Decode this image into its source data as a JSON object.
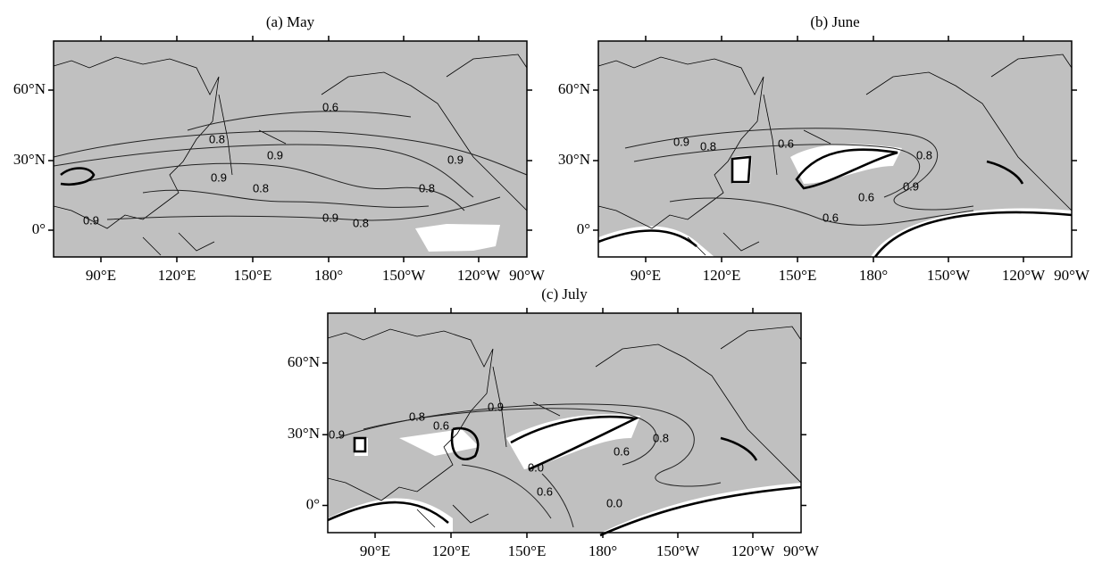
{
  "panels": [
    {
      "title": "(a) May",
      "x_labels": [
        "90°E",
        "120°E",
        "150°E",
        "180°",
        "150°W",
        "120°W",
        "90°W"
      ],
      "y_labels": [
        "60°N",
        "30°N",
        "0°"
      ],
      "contour_labels": [
        "0.6",
        "0.8",
        "0.9",
        "0.9",
        "0.8",
        "0.8",
        "0.9",
        "0.9",
        "0.8",
        "0.9"
      ]
    },
    {
      "title": "(b) June",
      "x_labels": [
        "90°E",
        "120°E",
        "150°E",
        "180°",
        "150°W",
        "120°W",
        "90°W"
      ],
      "y_labels": [
        "60°N",
        "30°N",
        "0°"
      ],
      "contour_labels": [
        "0.9",
        "0.8",
        "0.6",
        "0.8",
        "0.9",
        "0.6",
        "0.6"
      ]
    },
    {
      "title": "(c) July",
      "x_labels": [
        "90°E",
        "120°E",
        "150°E",
        "180°",
        "150°W",
        "120°W",
        "90°W"
      ],
      "y_labels": [
        "60°N",
        "30°N",
        "0°"
      ],
      "contour_labels": [
        "0.8",
        "0.6",
        "0.9",
        "0.9",
        "0.0",
        "0.6",
        "0.8",
        "0.6",
        "0.0"
      ]
    }
  ]
}
